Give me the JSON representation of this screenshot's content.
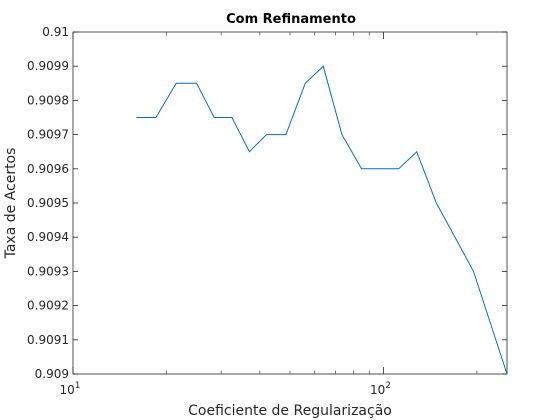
{
  "chart_data": {
    "type": "line",
    "title": "Com Refinamento",
    "xlabel": "Coeficiente de Regularização",
    "ylabel": "Taxa de Acertos",
    "xscale": "log",
    "xlim": [
      10,
      250
    ],
    "ylim": [
      0.909,
      0.91
    ],
    "grid": false,
    "box": true,
    "x_ticks": [
      {
        "value": 10,
        "base": "10",
        "exp": "1"
      },
      {
        "value": 100,
        "base": "10",
        "exp": "2"
      }
    ],
    "y_ticks": [
      {
        "value": 0.909,
        "label": "0.909"
      },
      {
        "value": 0.9091,
        "label": "0.9091"
      },
      {
        "value": 0.9092,
        "label": "0.9092"
      },
      {
        "value": 0.9093,
        "label": "0.9093"
      },
      {
        "value": 0.9094,
        "label": "0.9094"
      },
      {
        "value": 0.9095,
        "label": "0.9095"
      },
      {
        "value": 0.9096,
        "label": "0.9096"
      },
      {
        "value": 0.9097,
        "label": "0.9097"
      },
      {
        "value": 0.9098,
        "label": "0.9098"
      },
      {
        "value": 0.9099,
        "label": "0.9099"
      },
      {
        "value": 0.91,
        "label": "0.91"
      }
    ],
    "series": [
      {
        "color": "#0072bd",
        "x": [
          16,
          18.5,
          21.5,
          25,
          28.5,
          32.5,
          37,
          42,
          48.5,
          56,
          64,
          73.5,
          85,
          97,
          112,
          128,
          148,
          170,
          195,
          250
        ],
        "y": [
          0.90975,
          0.90975,
          0.90985,
          0.90985,
          0.90975,
          0.90975,
          0.90965,
          0.9097,
          0.9097,
          0.90985,
          0.9099,
          0.9097,
          0.9096,
          0.9096,
          0.9096,
          0.90965,
          0.9095,
          0.9094,
          0.9093,
          0.909
        ]
      }
    ]
  }
}
